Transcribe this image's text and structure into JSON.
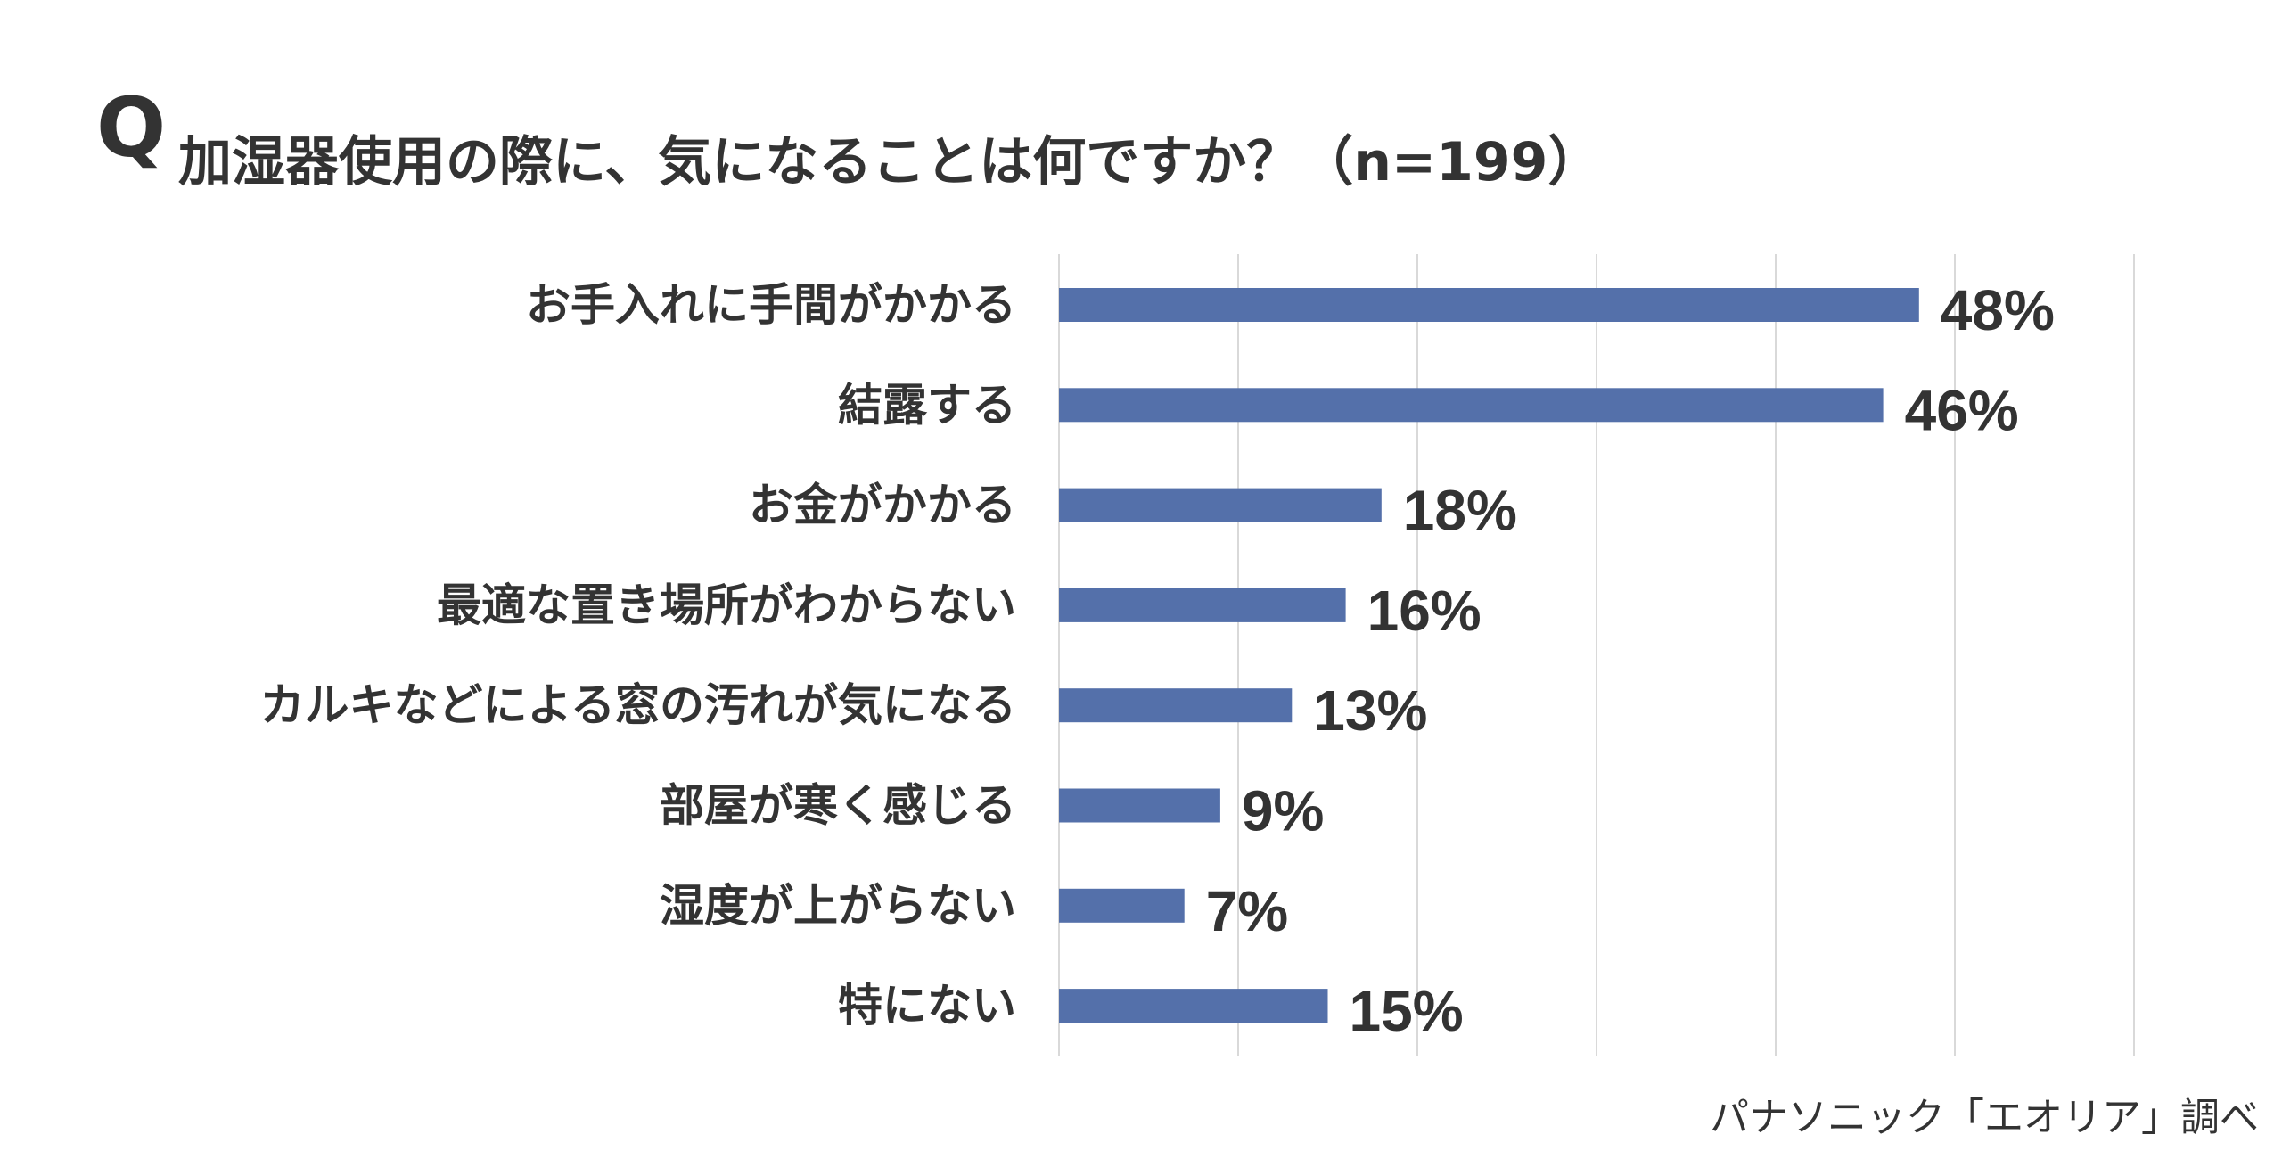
{
  "header": {
    "q_mark": "Q",
    "title": "加湿器使用の際に、気になることは何ですか？（n=199）"
  },
  "source": "パナソニック「エオリア」調べ",
  "colors": {
    "bar": "#5470aa",
    "grid": "#d9d9d9",
    "text": "#333333"
  },
  "chart_data": {
    "type": "bar",
    "orientation": "horizontal",
    "title": "加湿器使用の際に、気になることは何ですか？（n=199）",
    "categories": [
      "お手入れに手間がかかる",
      "結露する",
      "お金がかかる",
      "最適な置き場所がわからない",
      "カルキなどによる窓の汚れが気になる",
      "部屋が寒く感じる",
      "湿度が上がらない",
      "特にない"
    ],
    "values": [
      48,
      46,
      18,
      16,
      13,
      9,
      7,
      15
    ],
    "value_labels": [
      "48%",
      "46%",
      "18%",
      "16%",
      "13%",
      "9%",
      "7%",
      "15%"
    ],
    "unit": "%",
    "xlim": [
      0,
      60
    ],
    "grid_step": 10,
    "grid": true,
    "legend": "none",
    "xlabel": "",
    "ylabel": ""
  }
}
